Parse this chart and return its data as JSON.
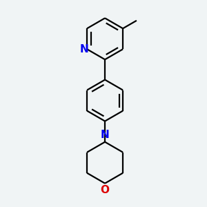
{
  "background_color": "#f0f4f5",
  "bond_color": "#000000",
  "N_color": "#0000ee",
  "O_color": "#dd0000",
  "line_width": 1.6,
  "font_size": 11,
  "figsize": [
    3.0,
    3.0
  ],
  "dpi": 100,
  "xlim": [
    -1.8,
    1.8
  ],
  "ylim": [
    -4.2,
    2.8
  ]
}
